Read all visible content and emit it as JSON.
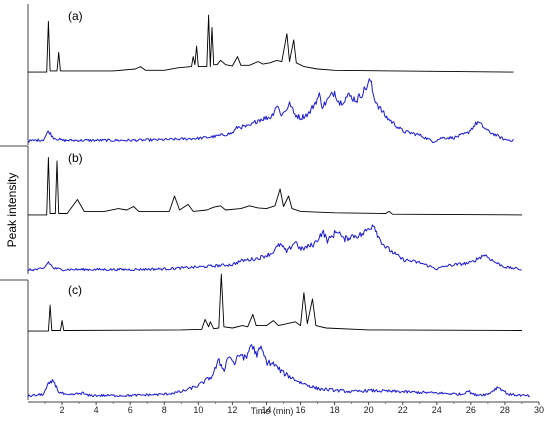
{
  "chart_data": {
    "type": "line",
    "xlabel": "Time (min)",
    "ylabel": "Peak intensity",
    "xlim": [
      0,
      30
    ],
    "x_ticks": [
      "2",
      "4",
      "6",
      "8",
      "10",
      "12",
      "14",
      "16",
      "18",
      "20",
      "22",
      "24",
      "26",
      "28",
      "30"
    ],
    "panels": [
      {
        "label": "(a)",
        "series": [
          {
            "color": "#000000",
            "kind": "black",
            "xmax": 28.5,
            "points": [
              [
                0,
                0.03
              ],
              [
                1.1,
                0.03
              ],
              [
                1.2,
                0.85
              ],
              [
                1.3,
                0.05
              ],
              [
                1.7,
                0.05
              ],
              [
                1.8,
                0.35
              ],
              [
                1.9,
                0.05
              ],
              [
                5,
                0.05
              ],
              [
                6.3,
                0.08
              ],
              [
                6.6,
                0.12
              ],
              [
                6.9,
                0.06
              ],
              [
                8,
                0.06
              ],
              [
                8.8,
                0.1
              ],
              [
                9.6,
                0.12
              ],
              [
                9.7,
                0.28
              ],
              [
                9.8,
                0.15
              ],
              [
                9.9,
                0.45
              ],
              [
                10.0,
                0.12
              ],
              [
                10.5,
                0.12
              ],
              [
                10.6,
                0.95
              ],
              [
                10.7,
                0.12
              ],
              [
                10.8,
                0.75
              ],
              [
                10.9,
                0.15
              ],
              [
                11.1,
                0.15
              ],
              [
                11.3,
                0.22
              ],
              [
                11.6,
                0.15
              ],
              [
                12.0,
                0.13
              ],
              [
                12.3,
                0.28
              ],
              [
                12.5,
                0.14
              ],
              [
                13.0,
                0.14
              ],
              [
                13.5,
                0.2
              ],
              [
                13.8,
                0.16
              ],
              [
                14.2,
                0.18
              ],
              [
                14.6,
                0.22
              ],
              [
                14.9,
                0.2
              ],
              [
                15.2,
                0.65
              ],
              [
                15.35,
                0.2
              ],
              [
                15.6,
                0.55
              ],
              [
                15.75,
                0.18
              ],
              [
                16.2,
                0.12
              ],
              [
                17,
                0.08
              ],
              [
                18,
                0.06
              ],
              [
                28.5,
                0.03
              ]
            ]
          },
          {
            "color": "#1a1ad4",
            "kind": "blue",
            "xmax": 28.5,
            "points": [
              [
                0,
                0.03
              ],
              [
                0.9,
                0.05
              ],
              [
                1.2,
                0.18
              ],
              [
                1.5,
                0.08
              ],
              [
                2,
                0.04
              ],
              [
                6,
                0.04
              ],
              [
                8,
                0.05
              ],
              [
                10,
                0.07
              ],
              [
                11,
                0.1
              ],
              [
                12.0,
                0.15
              ],
              [
                12.3,
                0.24
              ],
              [
                13,
                0.25
              ],
              [
                13.5,
                0.35
              ],
              [
                14.3,
                0.4
              ],
              [
                14.6,
                0.58
              ],
              [
                14.9,
                0.42
              ],
              [
                15.4,
                0.6
              ],
              [
                15.6,
                0.45
              ],
              [
                16.0,
                0.38
              ],
              [
                16.5,
                0.45
              ],
              [
                17.1,
                0.72
              ],
              [
                17.3,
                0.55
              ],
              [
                17.5,
                0.62
              ],
              [
                18.0,
                0.78
              ],
              [
                18.3,
                0.6
              ],
              [
                18.8,
                0.72
              ],
              [
                19.3,
                0.65
              ],
              [
                19.8,
                0.82
              ],
              [
                20.1,
                0.95
              ],
              [
                20.3,
                0.7
              ],
              [
                20.6,
                0.55
              ],
              [
                21,
                0.4
              ],
              [
                22,
                0.18
              ],
              [
                23,
                0.12
              ],
              [
                23.8,
                0.02
              ],
              [
                24.3,
                0.08
              ],
              [
                25,
                0.08
              ],
              [
                25.8,
                0.15
              ],
              [
                26.4,
                0.32
              ],
              [
                27,
                0.18
              ],
              [
                28,
                0.05
              ],
              [
                28.5,
                0.04
              ]
            ]
          }
        ]
      },
      {
        "label": "(b)",
        "series": [
          {
            "color": "#000000",
            "kind": "black",
            "xmax": 29,
            "points": [
              [
                0,
                0.03
              ],
              [
                1.1,
                0.03
              ],
              [
                1.2,
                0.85
              ],
              [
                1.3,
                0.05
              ],
              [
                1.6,
                0.05
              ],
              [
                1.7,
                0.8
              ],
              [
                1.8,
                0.05
              ],
              [
                2.3,
                0.05
              ],
              [
                2.9,
                0.25
              ],
              [
                3.3,
                0.08
              ],
              [
                4.5,
                0.08
              ],
              [
                5.3,
                0.12
              ],
              [
                5.8,
                0.1
              ],
              [
                6.2,
                0.15
              ],
              [
                6.5,
                0.08
              ],
              [
                8.3,
                0.08
              ],
              [
                8.6,
                0.3
              ],
              [
                8.9,
                0.1
              ],
              [
                9.4,
                0.18
              ],
              [
                9.7,
                0.08
              ],
              [
                10.5,
                0.1
              ],
              [
                10.9,
                0.14
              ],
              [
                11.3,
                0.16
              ],
              [
                11.6,
                0.1
              ],
              [
                12.5,
                0.12
              ],
              [
                13.0,
                0.16
              ],
              [
                13.5,
                0.13
              ],
              [
                14.0,
                0.12
              ],
              [
                14.5,
                0.16
              ],
              [
                14.8,
                0.4
              ],
              [
                15.0,
                0.15
              ],
              [
                15.3,
                0.3
              ],
              [
                15.5,
                0.12
              ],
              [
                16,
                0.08
              ],
              [
                18,
                0.06
              ],
              [
                21,
                0.05
              ],
              [
                21.2,
                0.08
              ],
              [
                21.4,
                0.04
              ],
              [
                29,
                0.03
              ]
            ]
          },
          {
            "color": "#1a1ad4",
            "kind": "blue",
            "xmax": 29,
            "points": [
              [
                0,
                0.03
              ],
              [
                0.9,
                0.05
              ],
              [
                1.2,
                0.16
              ],
              [
                1.5,
                0.06
              ],
              [
                2,
                0.04
              ],
              [
                6,
                0.04
              ],
              [
                8,
                0.05
              ],
              [
                10,
                0.08
              ],
              [
                11,
                0.1
              ],
              [
                12,
                0.12
              ],
              [
                12.5,
                0.18
              ],
              [
                13.5,
                0.22
              ],
              [
                14.3,
                0.3
              ],
              [
                14.8,
                0.45
              ],
              [
                15.2,
                0.32
              ],
              [
                15.7,
                0.5
              ],
              [
                16.0,
                0.36
              ],
              [
                16.8,
                0.45
              ],
              [
                17.3,
                0.65
              ],
              [
                17.6,
                0.5
              ],
              [
                18.2,
                0.68
              ],
              [
                18.5,
                0.52
              ],
              [
                19.0,
                0.58
              ],
              [
                19.6,
                0.6
              ],
              [
                20.0,
                0.7
              ],
              [
                20.3,
                0.78
              ],
              [
                20.6,
                0.55
              ],
              [
                21,
                0.4
              ],
              [
                22,
                0.2
              ],
              [
                23,
                0.15
              ],
              [
                24,
                0.05
              ],
              [
                24.6,
                0.1
              ],
              [
                26,
                0.15
              ],
              [
                26.8,
                0.28
              ],
              [
                27.4,
                0.16
              ],
              [
                28,
                0.08
              ],
              [
                29,
                0.04
              ]
            ]
          }
        ]
      },
      {
        "label": "(c)",
        "series": [
          {
            "color": "#000000",
            "kind": "black",
            "xmax": 29,
            "points": [
              [
                0,
                0.03
              ],
              [
                1.2,
                0.03
              ],
              [
                1.3,
                0.45
              ],
              [
                1.4,
                0.04
              ],
              [
                1.9,
                0.04
              ],
              [
                2.0,
                0.2
              ],
              [
                2.1,
                0.04
              ],
              [
                9,
                0.05
              ],
              [
                10.2,
                0.06
              ],
              [
                10.4,
                0.22
              ],
              [
                10.6,
                0.1
              ],
              [
                10.7,
                0.18
              ],
              [
                10.9,
                0.07
              ],
              [
                11.2,
                0.08
              ],
              [
                11.35,
                0.95
              ],
              [
                11.5,
                0.1
              ],
              [
                12,
                0.08
              ],
              [
                12.6,
                0.12
              ],
              [
                12.9,
                0.1
              ],
              [
                13.2,
                0.3
              ],
              [
                13.4,
                0.12
              ],
              [
                14,
                0.12
              ],
              [
                14.4,
                0.2
              ],
              [
                14.7,
                0.12
              ],
              [
                15.2,
                0.15
              ],
              [
                15.7,
                0.18
              ],
              [
                16.0,
                0.12
              ],
              [
                16.2,
                0.65
              ],
              [
                16.4,
                0.15
              ],
              [
                16.7,
                0.55
              ],
              [
                16.9,
                0.12
              ],
              [
                17.5,
                0.08
              ],
              [
                20,
                0.05
              ],
              [
                29,
                0.04
              ]
            ]
          },
          {
            "color": "#1a1ad4",
            "kind": "blue",
            "xmax": 29.5,
            "points": [
              [
                0,
                0.03
              ],
              [
                0.9,
                0.06
              ],
              [
                1.2,
                0.22
              ],
              [
                1.5,
                0.28
              ],
              [
                1.8,
                0.1
              ],
              [
                2.3,
                0.04
              ],
              [
                3.2,
                0.08
              ],
              [
                3.5,
                0.04
              ],
              [
                6,
                0.04
              ],
              [
                8,
                0.06
              ],
              [
                9,
                0.1
              ],
              [
                10,
                0.2
              ],
              [
                10.8,
                0.35
              ],
              [
                11.2,
                0.6
              ],
              [
                11.5,
                0.45
              ],
              [
                11.8,
                0.7
              ],
              [
                12.1,
                0.55
              ],
              [
                12.5,
                0.72
              ],
              [
                12.8,
                0.62
              ],
              [
                13.1,
                0.88
              ],
              [
                13.4,
                0.7
              ],
              [
                13.7,
                0.8
              ],
              [
                14.0,
                0.58
              ],
              [
                14.4,
                0.55
              ],
              [
                15,
                0.4
              ],
              [
                16,
                0.25
              ],
              [
                17,
                0.15
              ],
              [
                19,
                0.1
              ],
              [
                20,
                0.12
              ],
              [
                22,
                0.1
              ],
              [
                24,
                0.08
              ],
              [
                25.5,
                0.06
              ],
              [
                25.8,
                0.12
              ],
              [
                26.2,
                0.05
              ],
              [
                27,
                0.06
              ],
              [
                27.6,
                0.18
              ],
              [
                28.2,
                0.06
              ],
              [
                29.5,
                0.03
              ]
            ]
          }
        ]
      }
    ]
  }
}
